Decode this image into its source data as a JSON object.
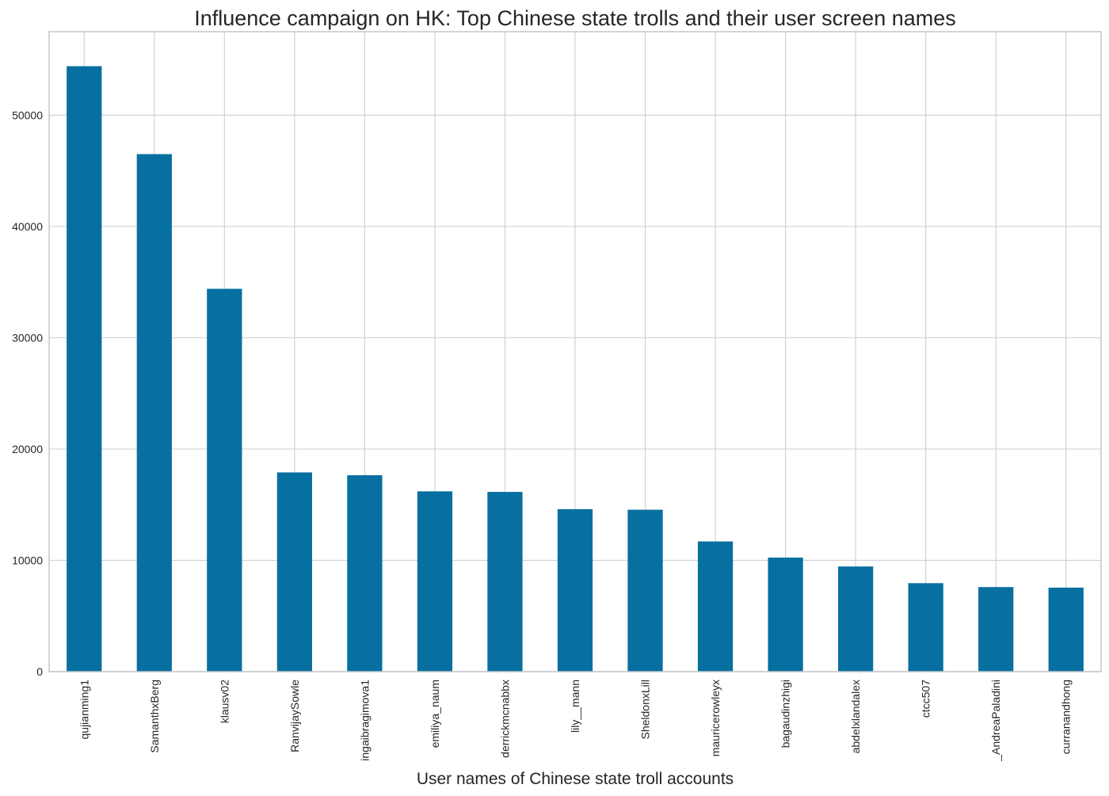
{
  "chart_data": {
    "type": "bar",
    "title": "Influence campaign on HK: Top Chinese state trolls and their user screen names",
    "xlabel": "User names of Chinese state troll accounts",
    "ylabel": "",
    "categories": [
      "qujianming1",
      "SamanthxBerg",
      "klausv02",
      "RanvijaySowle",
      "ingaibragimova1",
      "emiliya_naum",
      "derrickmcnabbx",
      "lily__mann",
      "SheldonxLill",
      "mauricerowleyx",
      "bagaudinzhigi",
      "abdelxlandalex",
      "ctcc507",
      "_AndreaPaladini",
      "curranandhong"
    ],
    "values": [
      54400,
      46500,
      34400,
      17900,
      17650,
      16200,
      16150,
      14600,
      14550,
      11700,
      10250,
      9450,
      7950,
      7600,
      7550
    ],
    "yticks": [
      0,
      10000,
      20000,
      30000,
      40000,
      50000
    ],
    "ylim": [
      0,
      57500
    ],
    "grid": true,
    "bar_color": "#0870a0",
    "grid_color": "#cfd3d6"
  }
}
